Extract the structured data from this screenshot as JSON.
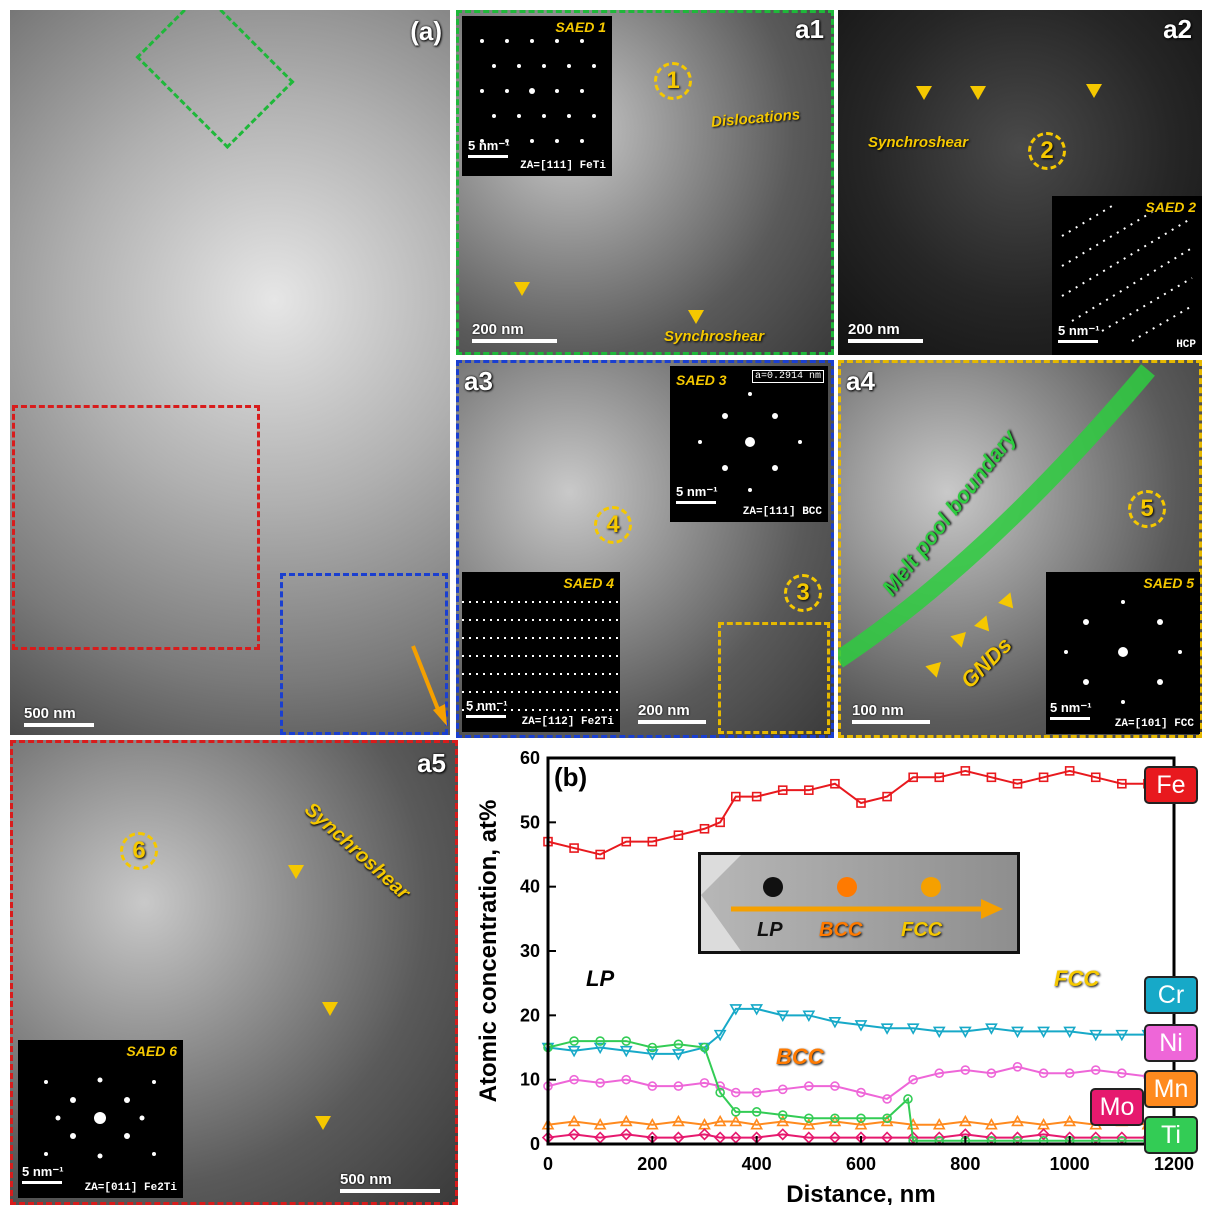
{
  "panels": {
    "a": {
      "label": "(a)",
      "scalebar": "500 nm"
    },
    "a1": {
      "label": "a1",
      "saed": "SAED 1",
      "saed_scale": "5 nm⁻¹",
      "za": "ZA=[111] FeTi",
      "circle": "1",
      "text_dislocations": "Dislocations",
      "text_synchroshear": "Synchroshear",
      "scalebar": "200 nm"
    },
    "a2": {
      "label": "a2",
      "saed": "SAED 2",
      "saed_scale": "5 nm⁻¹",
      "za": "HCP",
      "circle": "2",
      "text_synchroshear": "Synchroshear",
      "scalebar": "200 nm"
    },
    "a3": {
      "label": "a3",
      "saed3": "SAED 3",
      "lattice": "a=0.2914 nm",
      "saed3_scale": "5 nm⁻¹",
      "za3": "ZA=[111] BCC",
      "saed4": "SAED 4",
      "saed4_scale": "5 nm⁻¹",
      "za4": "ZA=[112] Fe2Ti",
      "circle4": "4",
      "circle3": "3",
      "scalebar": "200 nm"
    },
    "a4": {
      "label": "a4",
      "melt": "Melt pool boundary",
      "gnds": "GNDs",
      "circle": "5",
      "saed": "SAED 5",
      "saed_scale": "5 nm⁻¹",
      "za": "ZA=[101] FCC",
      "scalebar": "100 nm"
    },
    "a5": {
      "label": "a5",
      "circle": "6",
      "text_synchroshear": "Synchroshear",
      "saed": "SAED 6",
      "saed_scale": "5 nm⁻¹",
      "za": "ZA=[011] Fe2Ti",
      "scalebar": "500 nm"
    }
  },
  "chart_labels": {
    "panel": "(b)",
    "LP": "LP",
    "BCC": "BCC",
    "FCC": "FCC",
    "inset_LP": "LP",
    "inset_BCC": "BCC",
    "inset_FCC": "FCC"
  },
  "chart_data": {
    "type": "line",
    "title": "",
    "xlabel": "Distance, nm",
    "ylabel": "Atomic concentration, at%",
    "xlim": [
      0,
      1200
    ],
    "ylim": [
      0,
      60
    ],
    "xticks": [
      0,
      200,
      400,
      600,
      800,
      1000,
      1200
    ],
    "yticks": [
      0,
      10,
      20,
      30,
      40,
      50,
      60
    ],
    "series": [
      {
        "name": "Fe",
        "color": "#e8191e",
        "marker": "square",
        "x": [
          0,
          50,
          100,
          150,
          200,
          250,
          300,
          330,
          360,
          400,
          450,
          500,
          550,
          600,
          650,
          700,
          750,
          800,
          850,
          900,
          950,
          1000,
          1050,
          1100,
          1150
        ],
        "y": [
          47,
          46,
          45,
          47,
          47,
          48,
          49,
          50,
          54,
          54,
          55,
          55,
          56,
          53,
          54,
          57,
          57,
          58,
          57,
          56,
          57,
          58,
          57,
          56,
          56
        ]
      },
      {
        "name": "Cr",
        "color": "#17a9c8",
        "marker": "triangle-down",
        "x": [
          0,
          50,
          100,
          150,
          200,
          250,
          300,
          330,
          360,
          400,
          450,
          500,
          550,
          600,
          650,
          700,
          750,
          800,
          850,
          900,
          950,
          1000,
          1050,
          1100,
          1150
        ],
        "y": [
          15,
          14.5,
          15,
          14.5,
          14,
          14,
          15,
          17,
          21,
          21,
          20,
          20,
          19,
          18.5,
          18,
          18,
          17.5,
          17.5,
          18,
          17.5,
          17.5,
          17.5,
          17,
          17,
          17
        ]
      },
      {
        "name": "Ni",
        "color": "#ee66d8",
        "marker": "circle",
        "x": [
          0,
          50,
          100,
          150,
          200,
          250,
          300,
          330,
          360,
          400,
          450,
          500,
          550,
          600,
          650,
          700,
          750,
          800,
          850,
          900,
          950,
          1000,
          1050,
          1100,
          1150
        ],
        "y": [
          9,
          10,
          9.5,
          10,
          9,
          9,
          9.5,
          9,
          8,
          8,
          8.5,
          9,
          9,
          8,
          7,
          10,
          11,
          11.5,
          11,
          12,
          11,
          11,
          11.5,
          11,
          10.5
        ]
      },
      {
        "name": "Mn",
        "color": "#ff8a1e",
        "marker": "triangle-up",
        "x": [
          0,
          50,
          100,
          150,
          200,
          250,
          300,
          330,
          360,
          400,
          450,
          500,
          550,
          600,
          650,
          700,
          750,
          800,
          850,
          900,
          950,
          1000,
          1050,
          1100,
          1150
        ],
        "y": [
          3,
          3.5,
          3,
          3.5,
          3,
          3.5,
          3,
          3.5,
          3.5,
          3,
          3.5,
          3,
          3.5,
          3,
          3.5,
          3,
          3,
          3.5,
          3,
          3.5,
          3,
          3.5,
          3,
          3.5,
          3
        ]
      },
      {
        "name": "Mo",
        "color": "#e6196e",
        "marker": "diamond",
        "x": [
          0,
          50,
          100,
          150,
          200,
          250,
          300,
          330,
          360,
          400,
          450,
          500,
          550,
          600,
          650,
          700,
          750,
          800,
          850,
          900,
          950,
          1000,
          1050,
          1100,
          1150
        ],
        "y": [
          1,
          1.5,
          1,
          1.5,
          1,
          1,
          1.5,
          1,
          1,
          1,
          1.5,
          1,
          1,
          1,
          1,
          1,
          1,
          1.5,
          1,
          1,
          1.5,
          1,
          1,
          1,
          1
        ]
      },
      {
        "name": "Ti",
        "color": "#33cc55",
        "marker": "circle",
        "x": [
          0,
          50,
          100,
          150,
          200,
          250,
          300,
          330,
          360,
          400,
          450,
          500,
          550,
          600,
          650,
          690,
          700,
          750,
          800,
          850,
          900,
          950,
          1000,
          1050,
          1100,
          1150
        ],
        "y": [
          15,
          16,
          16,
          16,
          15,
          15.5,
          15,
          8,
          5,
          5,
          4.5,
          4,
          4,
          4,
          4,
          7,
          0.5,
          0.5,
          0.5,
          0.5,
          0.5,
          0.5,
          0.5,
          0.5,
          0.5,
          0.5
        ]
      }
    ],
    "legend_position": "right"
  }
}
